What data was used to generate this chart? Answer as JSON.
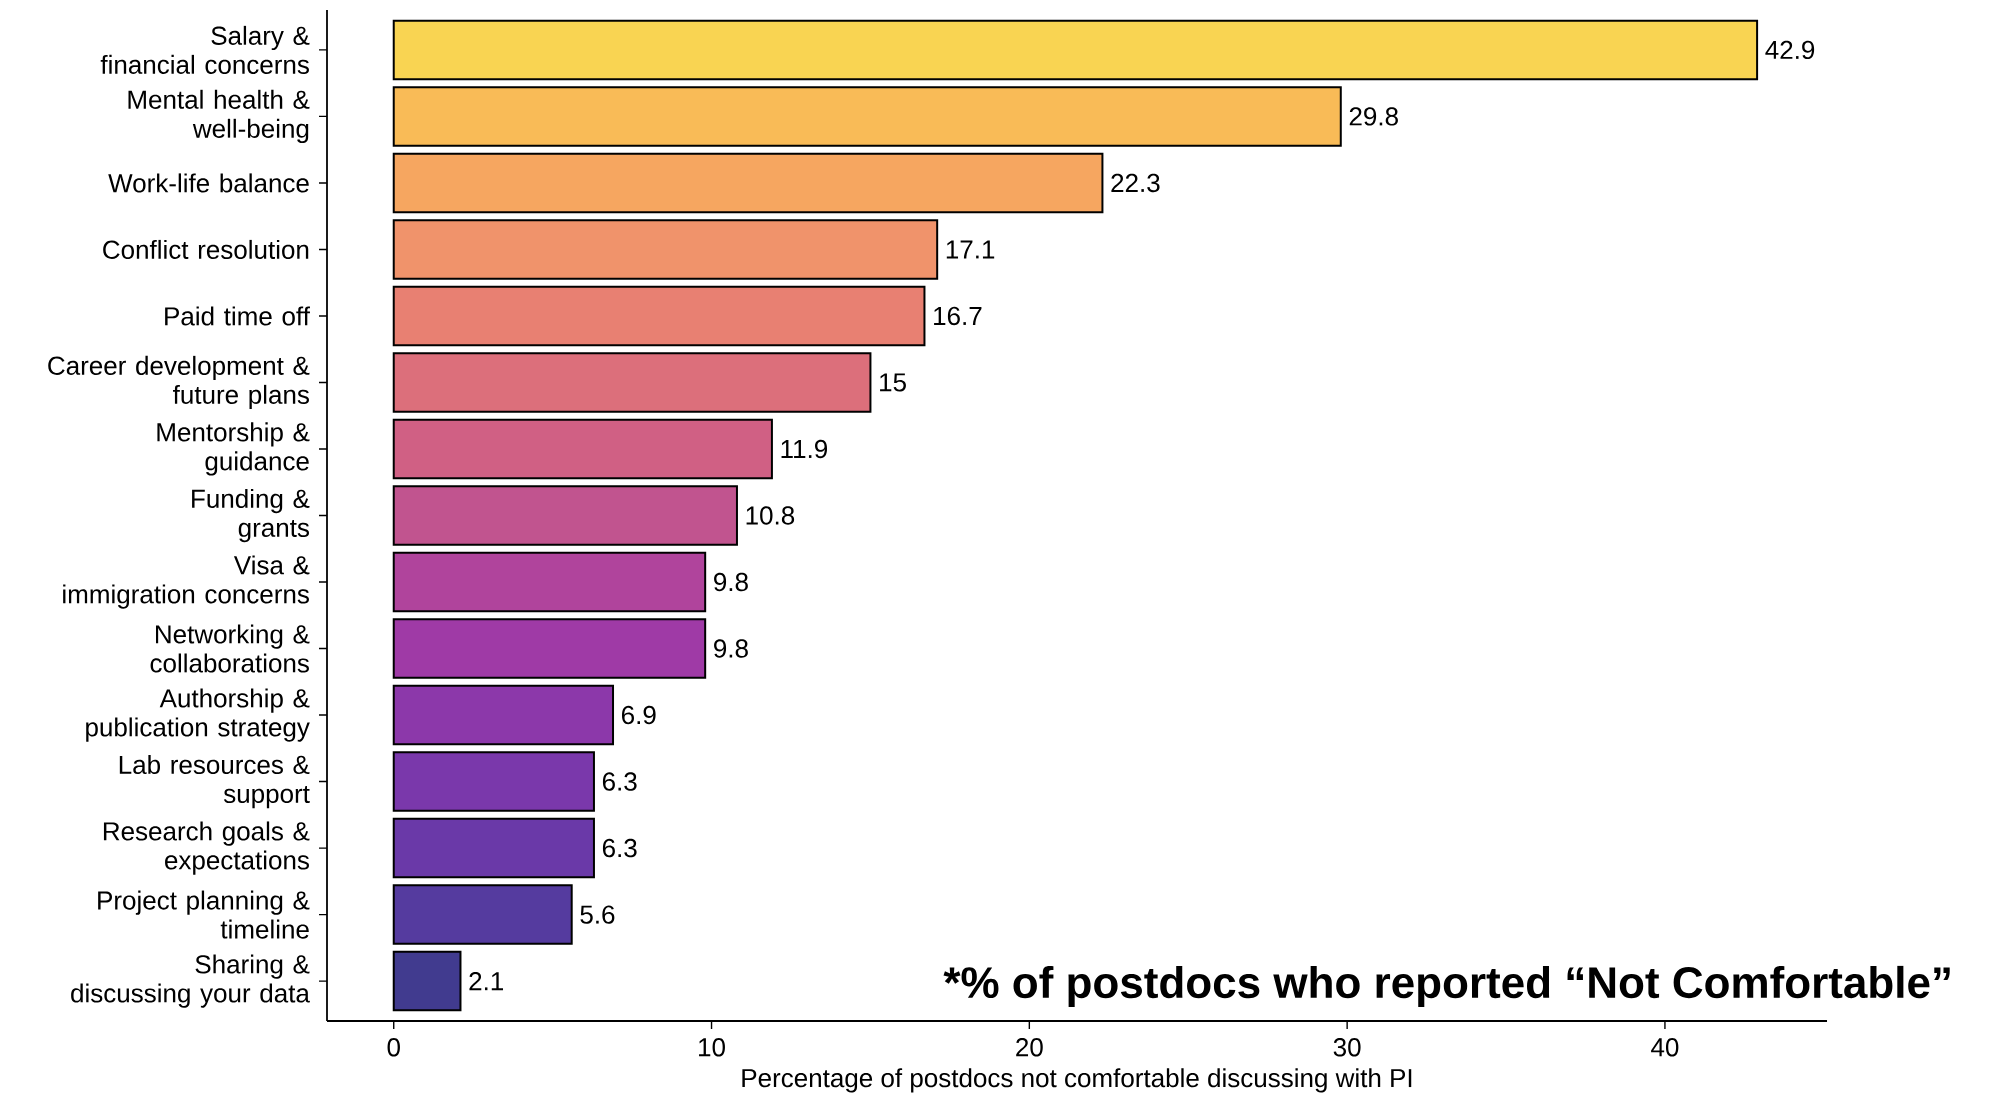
{
  "chart_data": {
    "type": "bar",
    "orientation": "horizontal",
    "xlabel": "Percentage of postdocs not comfortable discussing with PI",
    "categories": [
      "Salary & financial concerns",
      "Mental health & well-being",
      "Work-life balance",
      "Conflict resolution",
      "Paid time off",
      "Career development & future plans",
      "Mentorship & guidance",
      "Funding & grants",
      "Visa & immigration concerns",
      "Networking & collaborations",
      "Authorship & publication strategy",
      "Lab resources & support",
      "Research goals & expectations",
      "Project planning & timeline",
      "Sharing & discussing your data"
    ],
    "values": [
      42.9,
      29.8,
      22.3,
      17.1,
      16.7,
      15,
      11.9,
      10.8,
      9.8,
      9.8,
      6.9,
      6.3,
      6.3,
      5.6,
      2.1
    ],
    "colors": [
      "#f9d452",
      "#f9bb57",
      "#f6a660",
      "#f0936b",
      "#e88072",
      "#dc6f7b",
      "#d06084",
      "#c1548f",
      "#b0449c",
      "#9f3aa6",
      "#8c38aa",
      "#7a38ab",
      "#6a39a8",
      "#553b9f",
      "#413b8f"
    ],
    "xlim": [
      -2.1,
      45.1
    ],
    "xticks": [
      0,
      10,
      20,
      30,
      40
    ],
    "data_labels": true,
    "grid": false,
    "annotations": [
      "*% of postdocs who reported “Not Comfortable”"
    ]
  }
}
